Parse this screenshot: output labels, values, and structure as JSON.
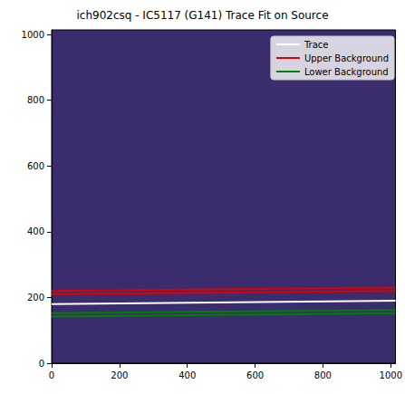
{
  "chart_data": {
    "type": "line",
    "title": "ich902csq - IC5117 (G141) Trace Fit on Source",
    "xlim": [
      0,
      1014
    ],
    "ylim": [
      0,
      1014
    ],
    "xticks": [
      0,
      200,
      400,
      600,
      800,
      1000
    ],
    "yticks": [
      0,
      200,
      400,
      600,
      800,
      1000
    ],
    "grid": false,
    "legend": "upper right",
    "series": [
      {
        "name": "Trace",
        "color": "#ffffff",
        "x": [
          0,
          1014
        ],
        "values": [
          180,
          190
        ]
      },
      {
        "name": "Upper Background",
        "color": "#e00000",
        "x": [
          0,
          1014
        ],
        "values": [
          210,
          220
        ]
      },
      {
        "name": "Upper Background",
        "color": "#e00000",
        "x": [
          0,
          1014
        ],
        "values": [
          220,
          230
        ]
      },
      {
        "name": "Lower Background",
        "color": "#008000",
        "x": [
          0,
          1014
        ],
        "values": [
          142,
          152
        ]
      },
      {
        "name": "Lower Background",
        "color": "#008000",
        "x": [
          0,
          1014
        ],
        "values": [
          152,
          162
        ]
      }
    ]
  }
}
